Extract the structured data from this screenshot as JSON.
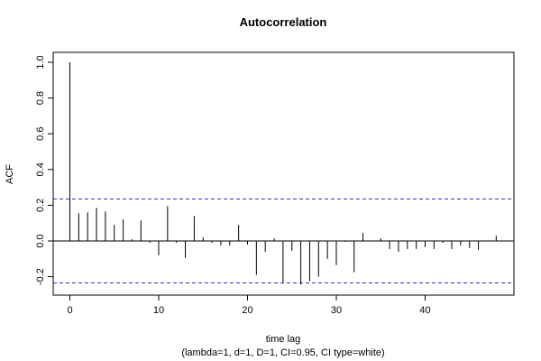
{
  "chart_data": {
    "type": "bar",
    "title": "Autocorrelation",
    "xlabel": "time lag",
    "subtitle": "(lambda=1, d=1, D=1, CI=0.95, CI type=white)",
    "ylabel": "ACF",
    "xlim": [
      -2,
      50
    ],
    "ylim": [
      -0.3,
      1.05
    ],
    "x_ticks": [
      0,
      10,
      20,
      30,
      40
    ],
    "y_ticks": [
      -0.2,
      0.0,
      0.2,
      0.4,
      0.6,
      0.8,
      1.0
    ],
    "y_tick_labels": [
      "-0.2",
      "0.0",
      "0.2",
      "0.4",
      "0.6",
      "0.8",
      "1.0"
    ],
    "confidence_bounds": [
      0.235,
      -0.235
    ],
    "confidence_color": "#3333cc",
    "lags": [
      0,
      1,
      2,
      3,
      4,
      5,
      6,
      7,
      8,
      9,
      10,
      11,
      12,
      13,
      14,
      15,
      16,
      17,
      18,
      19,
      20,
      21,
      22,
      23,
      24,
      25,
      26,
      27,
      28,
      29,
      30,
      31,
      32,
      33,
      34,
      35,
      36,
      37,
      38,
      39,
      40,
      41,
      42,
      43,
      44,
      45,
      46,
      47,
      48
    ],
    "values": [
      1.0,
      0.155,
      0.16,
      0.185,
      0.165,
      0.09,
      0.12,
      0.01,
      0.115,
      -0.01,
      -0.08,
      0.195,
      -0.01,
      -0.095,
      0.14,
      0.02,
      -0.01,
      -0.025,
      -0.025,
      0.09,
      -0.02,
      -0.19,
      -0.06,
      0.015,
      -0.235,
      -0.055,
      -0.245,
      -0.225,
      -0.2,
      -0.1,
      -0.135,
      -0.005,
      -0.175,
      0.045,
      0.0,
      0.015,
      -0.045,
      -0.06,
      -0.045,
      -0.045,
      -0.035,
      -0.045,
      -0.01,
      -0.045,
      -0.025,
      -0.04,
      -0.05,
      0.0,
      0.03
    ],
    "grid": false
  }
}
